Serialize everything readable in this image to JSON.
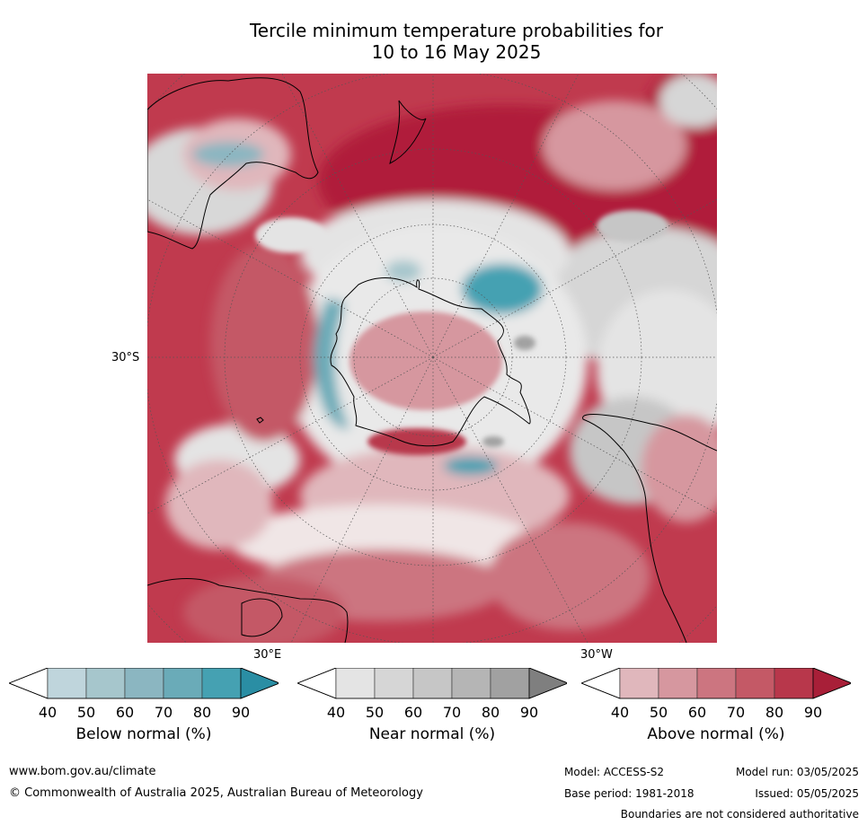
{
  "title": {
    "line1": "Tercile minimum temperature probabilities for",
    "line2": "10 to 16 May 2025"
  },
  "map": {
    "projection": "south-polar-stereographic",
    "labels": {
      "lat_30s": "30°S",
      "lon_30e": "30°E",
      "lon_30w": "30°W"
    },
    "colors": {
      "land_outline": "#000000",
      "graticule": "#555555"
    }
  },
  "colorbars": [
    {
      "id": "below",
      "label": "Below normal (%)",
      "ticks": [
        "40",
        "50",
        "60",
        "70",
        "80",
        "90"
      ],
      "colors": [
        "#ffffff",
        "#bfd5dc",
        "#a6c6cc",
        "#8bb6c1",
        "#6aabb8",
        "#45a1b2",
        "#2a8ea4"
      ]
    },
    {
      "id": "near",
      "label": "Near normal (%)",
      "ticks": [
        "40",
        "50",
        "60",
        "70",
        "80",
        "90"
      ],
      "colors": [
        "#ffffff",
        "#e4e4e4",
        "#d6d6d6",
        "#c6c6c6",
        "#b5b5b5",
        "#a1a1a1",
        "#7f7f7f"
      ]
    },
    {
      "id": "above",
      "label": "Above normal (%)",
      "ticks": [
        "40",
        "50",
        "60",
        "70",
        "80",
        "90"
      ],
      "colors": [
        "#ffffff",
        "#e0b7bc",
        "#d6979f",
        "#cc7580",
        "#c45966",
        "#b8374b",
        "#a81f38"
      ]
    }
  ],
  "footer": {
    "url": "www.bom.gov.au/climate",
    "copyright": "© Commonwealth of Australia 2025, Australian Bureau of Meteorology",
    "model": "Model: ACCESS-S2",
    "model_run": "Model run: 03/05/2025",
    "base_period": "Base period: 1981-2018",
    "issued": "Issued: 05/05/2025",
    "boundaries": "Boundaries are not considered authoritative"
  }
}
